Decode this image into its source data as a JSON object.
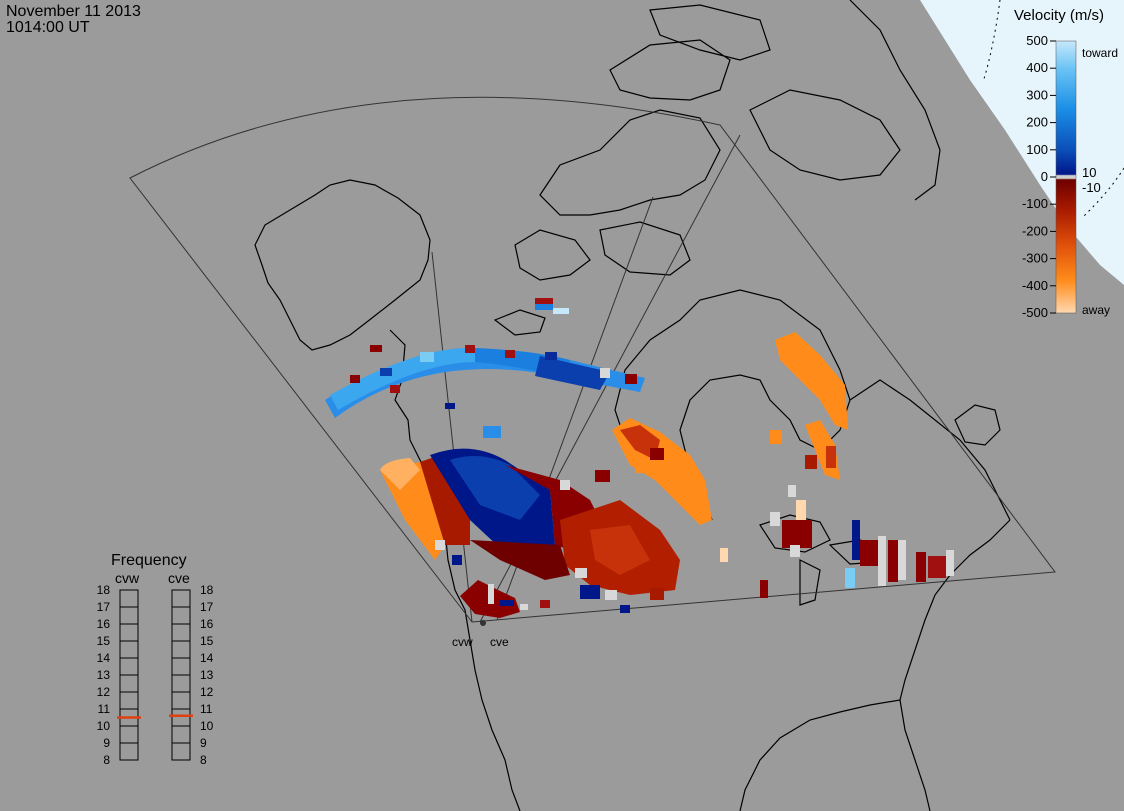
{
  "header": {
    "date": "November 11 2013",
    "time": "1014:00 UT"
  },
  "colors": {
    "background": "#9b9b9b",
    "night_side": "#e6f4fb",
    "coast": "#000000"
  },
  "velocity_scale": {
    "title": "Velocity (m/s)",
    "ticks": [
      "500",
      "400",
      "300",
      "200",
      "100",
      "0",
      "-100",
      "-200",
      "-300",
      "-400",
      "-500"
    ],
    "mid_labels": [
      "10",
      "-10"
    ],
    "toward_label": "toward",
    "away_label": "away"
  },
  "frequency_panel": {
    "title": "Frequency",
    "radars": [
      "cvw",
      "cve"
    ],
    "ticks": [
      "18",
      "17",
      "16",
      "15",
      "14",
      "13",
      "12",
      "11",
      "10",
      "9",
      "8"
    ],
    "current_mhz": [
      10.5,
      10.6
    ]
  },
  "radar_sites": [
    {
      "label": "cvw"
    },
    {
      "label": "cve"
    }
  ]
}
